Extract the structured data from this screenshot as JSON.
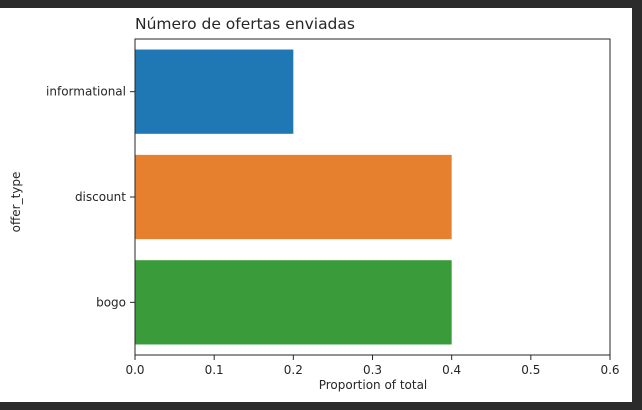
{
  "chart_data": {
    "type": "bar",
    "orientation": "horizontal",
    "title": "Número de ofertas enviadas",
    "xlabel": "Proportion of total",
    "ylabel": "offer_type",
    "categories": [
      "informational",
      "discount",
      "bogo"
    ],
    "values": [
      0.2,
      0.4,
      0.4
    ],
    "colors": [
      "#1f77b4",
      "#e6802e",
      "#3a9b3a"
    ],
    "xlim": [
      0,
      0.6
    ],
    "xticks": [
      "0.0",
      "0.1",
      "0.2",
      "0.3",
      "0.4",
      "0.5",
      "0.6"
    ],
    "grid": false,
    "legend": "none"
  }
}
